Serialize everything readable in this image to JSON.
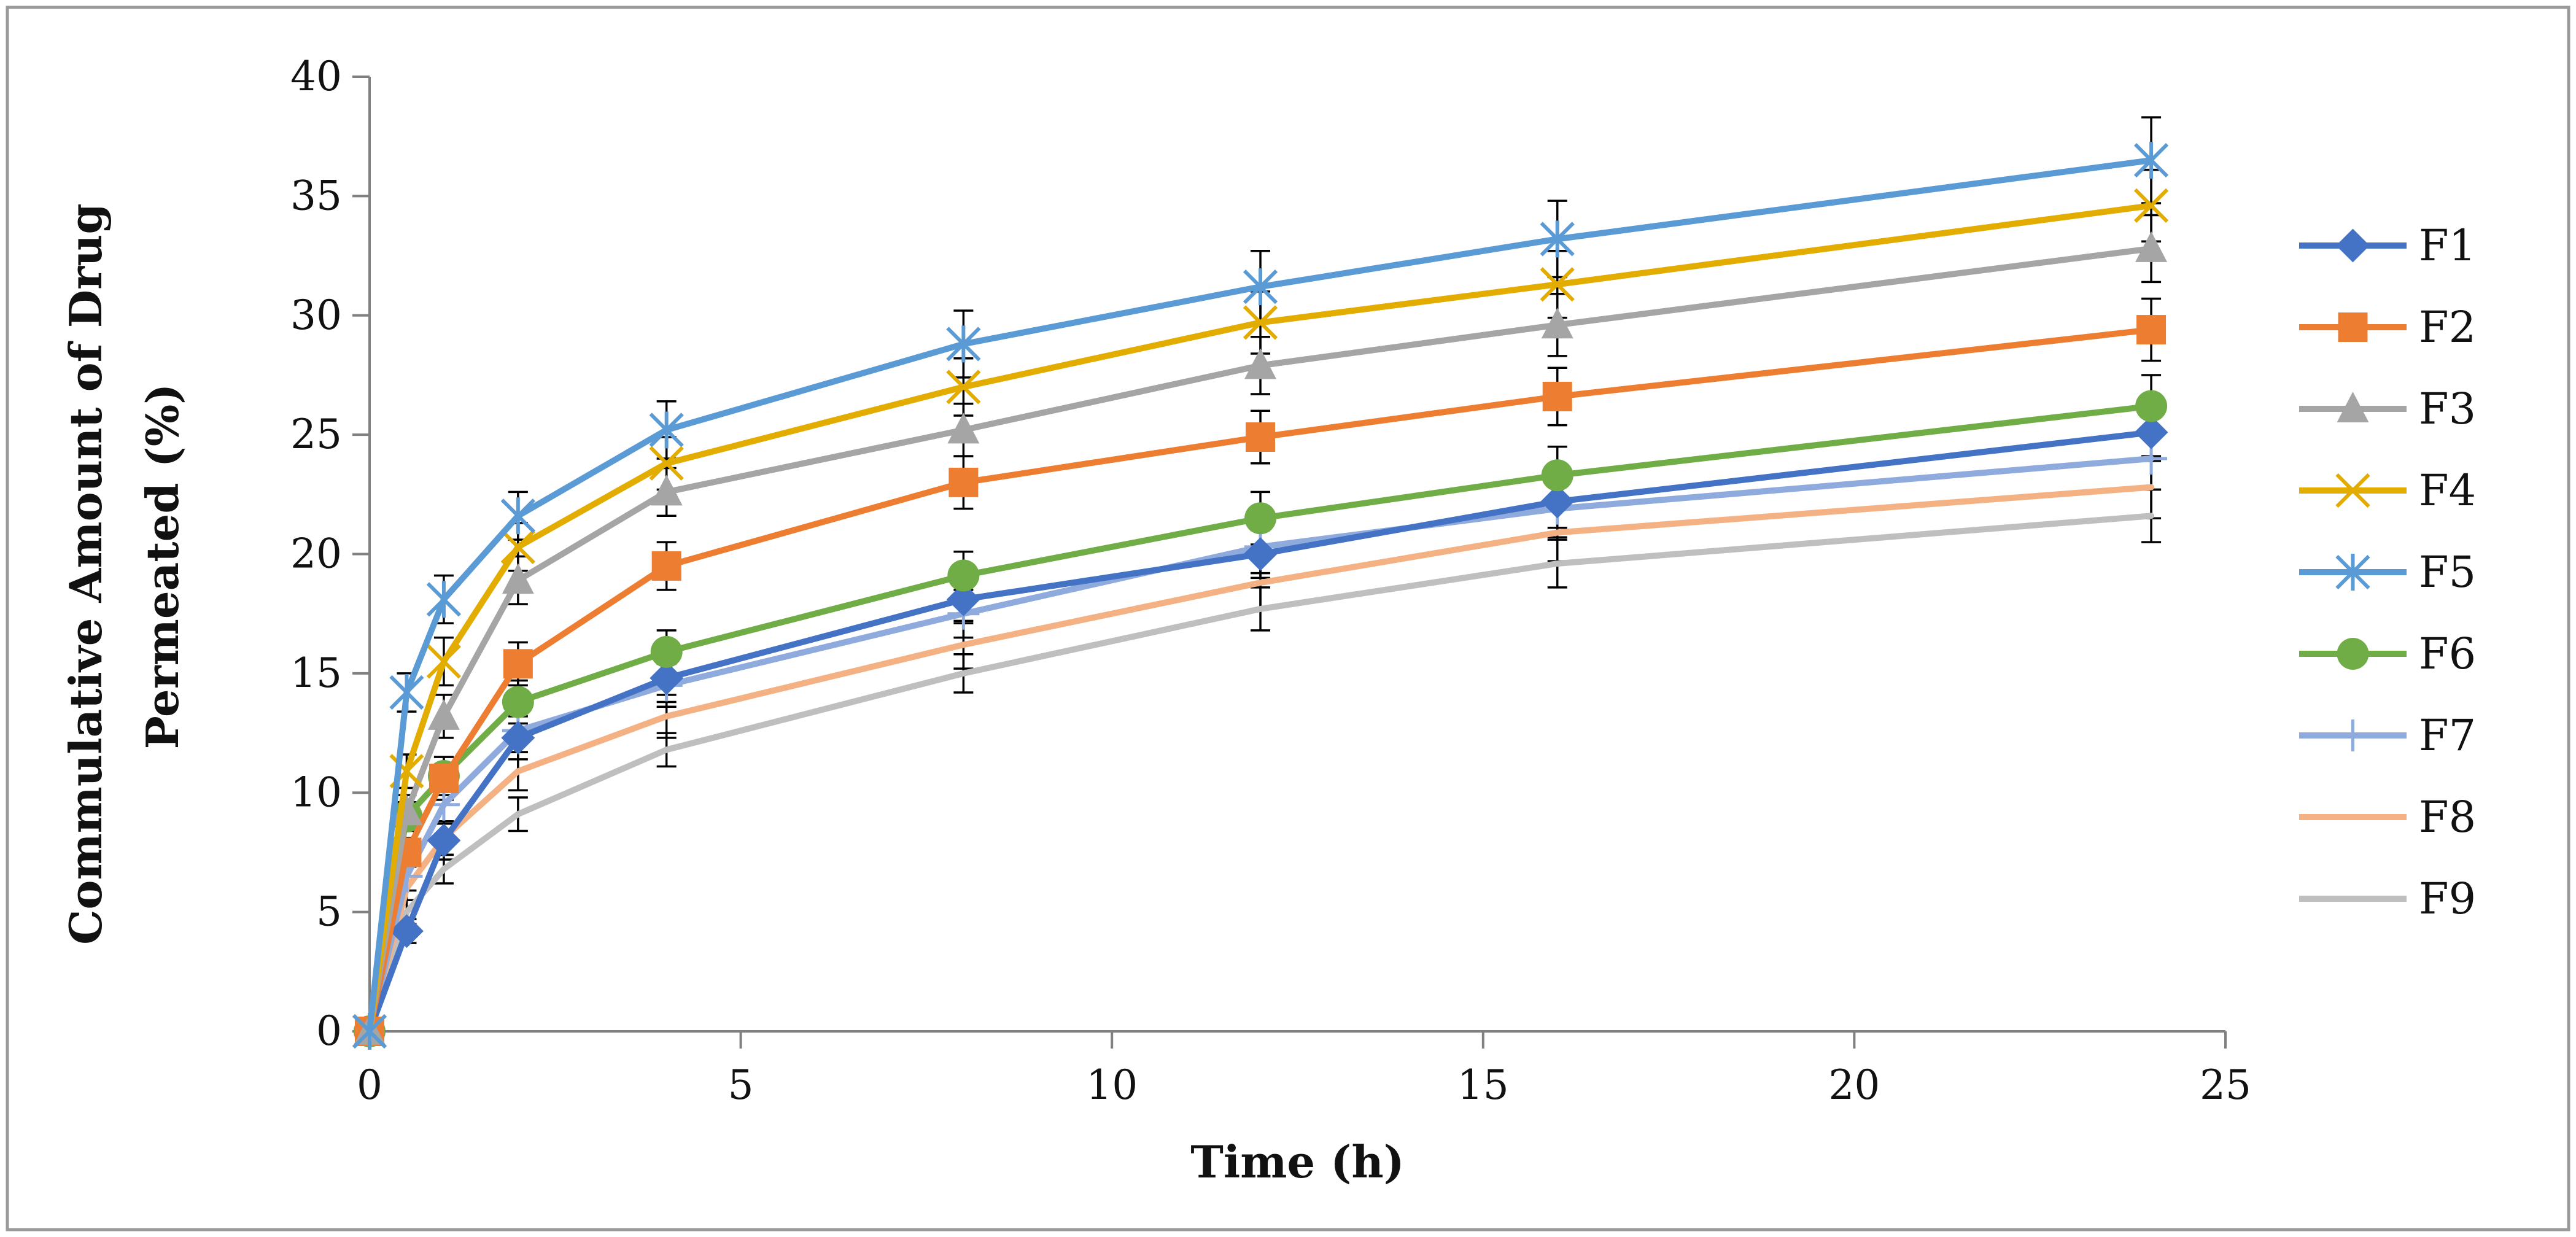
{
  "chart_data": {
    "type": "line",
    "title": "",
    "xlabel": "Time (h)",
    "ylabel_lines": [
      "Commulative Amount of Drug",
      "Permeated (%)"
    ],
    "xlim": [
      0,
      25
    ],
    "ylim": [
      0,
      40
    ],
    "xticks": [
      "0",
      "5",
      "10",
      "15",
      "20",
      "25"
    ],
    "yticks": [
      "0",
      "5",
      "10",
      "15",
      "20",
      "25",
      "30",
      "35",
      "40"
    ],
    "grid": false,
    "legend_position": "right",
    "x": [
      0,
      0.5,
      1,
      2,
      4,
      8,
      12,
      16,
      24
    ],
    "series": [
      {
        "name": "F1",
        "color": "#4472C4",
        "marker": "diamond",
        "values": [
          0,
          4.2,
          8.0,
          12.3,
          14.8,
          18.1,
          20.0,
          22.2,
          25.1
        ],
        "errors": [
          0,
          0.5,
          0.8,
          0.9,
          1.0,
          1.0,
          1.0,
          1.1,
          1.2
        ]
      },
      {
        "name": "F2",
        "color": "#ED7D31",
        "marker": "square",
        "values": [
          0,
          7.5,
          10.6,
          15.4,
          19.5,
          23.0,
          24.9,
          26.6,
          29.4
        ],
        "errors": [
          0,
          0.6,
          0.9,
          0.9,
          1.0,
          1.1,
          1.1,
          1.2,
          1.3
        ]
      },
      {
        "name": "F3",
        "color": "#A5A5A5",
        "marker": "triangle",
        "values": [
          0,
          9.2,
          13.2,
          18.9,
          22.6,
          25.2,
          27.9,
          29.6,
          32.8
        ],
        "errors": [
          0,
          0.7,
          0.9,
          1.0,
          1.0,
          1.1,
          1.2,
          1.3,
          1.4
        ]
      },
      {
        "name": "F4",
        "color": "#E2AC00",
        "marker": "x",
        "values": [
          0,
          10.9,
          15.5,
          20.3,
          23.8,
          27.0,
          29.7,
          31.3,
          34.6
        ],
        "errors": [
          0,
          0.7,
          1.0,
          1.0,
          1.1,
          1.2,
          1.3,
          1.4,
          1.5
        ]
      },
      {
        "name": "F5",
        "color": "#5B9BD5",
        "marker": "star",
        "values": [
          0,
          14.2,
          18.1,
          21.6,
          25.2,
          28.8,
          31.2,
          33.2,
          36.5
        ],
        "errors": [
          0,
          0.8,
          1.0,
          1.0,
          1.2,
          1.4,
          1.5,
          1.6,
          1.8
        ]
      },
      {
        "name": "F6",
        "color": "#70AD47",
        "marker": "circle",
        "values": [
          0,
          9.0,
          10.7,
          13.8,
          15.9,
          19.1,
          21.5,
          23.3,
          26.2
        ],
        "errors": [
          0,
          0.6,
          0.8,
          0.9,
          0.9,
          1.0,
          1.1,
          1.2,
          1.3
        ]
      },
      {
        "name": "F7",
        "color": "#8FAADC",
        "marker": "plus",
        "values": [
          0,
          6.5,
          9.5,
          12.6,
          14.5,
          17.5,
          20.3,
          21.9,
          24.0
        ],
        "errors": [
          0,
          0.6,
          0.8,
          0.9,
          0.9,
          1.0,
          1.1,
          1.2,
          1.3
        ]
      },
      {
        "name": "F8",
        "color": "#F4B183",
        "marker": "none",
        "values": [
          0,
          6.0,
          8.1,
          10.9,
          13.2,
          16.2,
          18.8,
          20.9,
          22.8
        ],
        "errors": [
          0,
          0.5,
          0.7,
          0.8,
          0.9,
          1.0,
          1.1,
          1.2,
          1.3
        ]
      },
      {
        "name": "F9",
        "color": "#BFBFBF",
        "marker": "none",
        "values": [
          0,
          5.0,
          6.8,
          9.1,
          11.8,
          15.0,
          17.7,
          19.6,
          21.6
        ],
        "errors": [
          0,
          0.5,
          0.6,
          0.7,
          0.7,
          0.8,
          0.9,
          1.0,
          1.1
        ]
      }
    ]
  }
}
